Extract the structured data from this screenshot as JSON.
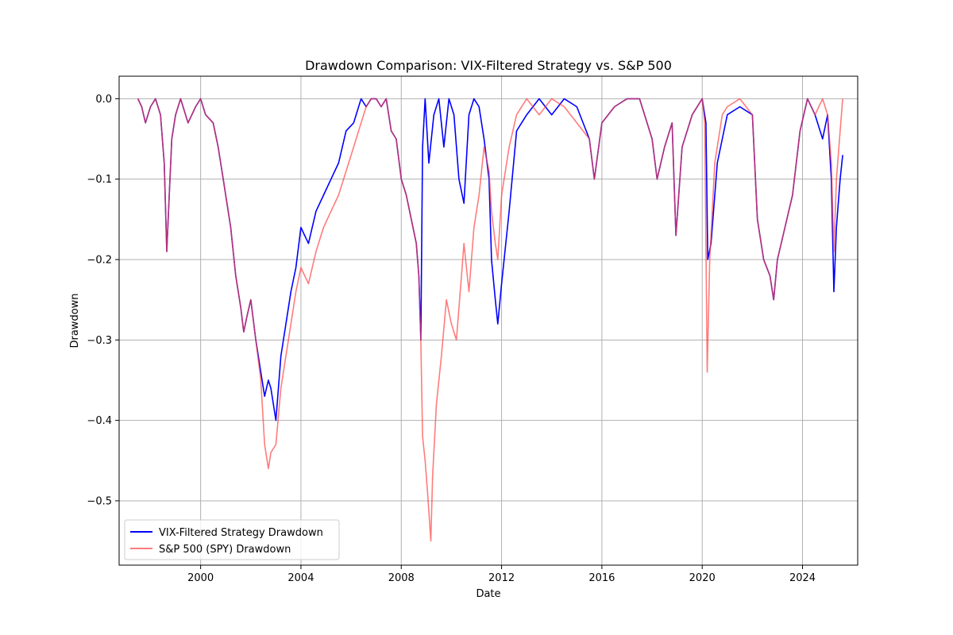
{
  "chart_data": {
    "type": "line",
    "title": "Drawdown Comparison: VIX-Filtered Strategy vs. S&P 500",
    "xlabel": "Date",
    "ylabel": "Drawdown",
    "xlim": [
      1996.75,
      2026.2
    ],
    "ylim": [
      -0.58,
      0.028
    ],
    "grid": true,
    "legend_location": "lower left",
    "x_ticks": [
      2000,
      2004,
      2008,
      2012,
      2016,
      2020,
      2024
    ],
    "x_tick_labels": [
      "2000",
      "2004",
      "2008",
      "2012",
      "2016",
      "2020",
      "2024"
    ],
    "y_ticks": [
      0.0,
      -0.1,
      -0.2,
      -0.3,
      -0.4,
      -0.5
    ],
    "y_tick_labels": [
      "0.0",
      "−0.1",
      "−0.2",
      "−0.3",
      "−0.4",
      "−0.5"
    ],
    "series": [
      {
        "name": "VIX-Filtered Strategy Drawdown",
        "color": "#0000ff",
        "x": [
          1997.5,
          1997.65,
          1997.8,
          1997.9,
          1998.0,
          1998.2,
          1998.4,
          1998.55,
          1998.65,
          1998.72,
          1998.85,
          1999.0,
          1999.2,
          1999.5,
          1999.8,
          2000.0,
          2000.2,
          2000.5,
          2000.7,
          2000.9,
          2001.0,
          2001.2,
          2001.4,
          2001.6,
          2001.72,
          2001.85,
          2002.0,
          2002.2,
          2002.4,
          2002.55,
          2002.7,
          2002.8,
          2003.0,
          2003.2,
          2003.4,
          2003.6,
          2003.8,
          2004.0,
          2004.3,
          2004.6,
          2004.9,
          2005.2,
          2005.5,
          2005.8,
          2006.1,
          2006.4,
          2006.6,
          2006.8,
          2007.0,
          2007.2,
          2007.4,
          2007.6,
          2007.8,
          2008.0,
          2008.2,
          2008.4,
          2008.6,
          2008.7,
          2008.78,
          2008.85,
          2008.95,
          2009.1,
          2009.3,
          2009.5,
          2009.7,
          2009.9,
          2010.1,
          2010.3,
          2010.5,
          2010.7,
          2010.9,
          2011.1,
          2011.3,
          2011.5,
          2011.6,
          2011.75,
          2011.85,
          2012.0,
          2012.3,
          2012.6,
          2013.0,
          2013.5,
          2014.0,
          2014.5,
          2015.0,
          2015.5,
          2015.7,
          2016.0,
          2016.5,
          2017.0,
          2017.5,
          2018.0,
          2018.2,
          2018.5,
          2018.8,
          2018.95,
          2019.2,
          2019.6,
          2020.0,
          2020.15,
          2020.22,
          2020.35,
          2020.6,
          2021.0,
          2021.5,
          2022.0,
          2022.2,
          2022.45,
          2022.7,
          2022.85,
          2023.0,
          2023.3,
          2023.6,
          2023.9,
          2024.2,
          2024.5,
          2024.8,
          2025.0,
          2025.15,
          2025.25,
          2025.35,
          2025.5,
          2025.6
        ],
        "y": [
          0.0,
          -0.01,
          -0.03,
          -0.02,
          -0.01,
          0.0,
          -0.02,
          -0.08,
          -0.19,
          -0.14,
          -0.05,
          -0.02,
          0.0,
          -0.03,
          -0.01,
          0.0,
          -0.02,
          -0.03,
          -0.06,
          -0.1,
          -0.12,
          -0.16,
          -0.22,
          -0.26,
          -0.29,
          -0.27,
          -0.25,
          -0.3,
          -0.34,
          -0.37,
          -0.35,
          -0.36,
          -0.4,
          -0.32,
          -0.28,
          -0.24,
          -0.21,
          -0.16,
          -0.18,
          -0.14,
          -0.12,
          -0.1,
          -0.08,
          -0.04,
          -0.03,
          0.0,
          -0.01,
          0.0,
          0.0,
          -0.01,
          0.0,
          -0.04,
          -0.05,
          -0.1,
          -0.12,
          -0.15,
          -0.18,
          -0.22,
          -0.3,
          -0.06,
          0.0,
          -0.08,
          -0.02,
          0.0,
          -0.06,
          0.0,
          -0.02,
          -0.1,
          -0.13,
          -0.02,
          0.0,
          -0.01,
          -0.05,
          -0.1,
          -0.2,
          -0.25,
          -0.28,
          -0.23,
          -0.14,
          -0.04,
          -0.02,
          0.0,
          -0.02,
          0.0,
          -0.01,
          -0.05,
          -0.1,
          -0.03,
          -0.01,
          0.0,
          0.0,
          -0.05,
          -0.1,
          -0.06,
          -0.03,
          -0.17,
          -0.06,
          -0.02,
          0.0,
          -0.03,
          -0.2,
          -0.18,
          -0.08,
          -0.02,
          -0.01,
          -0.02,
          -0.15,
          -0.2,
          -0.22,
          -0.25,
          -0.2,
          -0.16,
          -0.12,
          -0.04,
          0.0,
          -0.02,
          -0.05,
          -0.02,
          -0.1,
          -0.24,
          -0.16,
          -0.1,
          -0.07
        ]
      },
      {
        "name": "S&P 500 (SPY) Drawdown",
        "color": "#ff4444",
        "x": [
          1997.5,
          1997.65,
          1997.8,
          1997.9,
          1998.0,
          1998.2,
          1998.4,
          1998.55,
          1998.65,
          1998.72,
          1998.85,
          1999.0,
          1999.2,
          1999.5,
          1999.8,
          2000.0,
          2000.2,
          2000.5,
          2000.7,
          2000.9,
          2001.0,
          2001.2,
          2001.4,
          2001.6,
          2001.72,
          2001.85,
          2002.0,
          2002.2,
          2002.4,
          2002.55,
          2002.7,
          2002.8,
          2003.0,
          2003.2,
          2003.4,
          2003.6,
          2003.8,
          2004.0,
          2004.3,
          2004.6,
          2004.9,
          2005.2,
          2005.5,
          2005.8,
          2006.1,
          2006.4,
          2006.6,
          2006.8,
          2007.0,
          2007.2,
          2007.4,
          2007.6,
          2007.8,
          2008.0,
          2008.2,
          2008.4,
          2008.6,
          2008.7,
          2008.78,
          2008.85,
          2008.95,
          2009.05,
          2009.18,
          2009.25,
          2009.4,
          2009.6,
          2009.8,
          2010.0,
          2010.2,
          2010.4,
          2010.5,
          2010.7,
          2010.9,
          2011.1,
          2011.3,
          2011.5,
          2011.6,
          2011.75,
          2011.85,
          2012.0,
          2012.3,
          2012.6,
          2013.0,
          2013.5,
          2014.0,
          2014.5,
          2015.0,
          2015.5,
          2015.7,
          2016.0,
          2016.5,
          2017.0,
          2017.5,
          2018.0,
          2018.2,
          2018.5,
          2018.8,
          2018.95,
          2019.2,
          2019.6,
          2020.0,
          2020.1,
          2020.2,
          2020.3,
          2020.5,
          2020.8,
          2021.0,
          2021.5,
          2022.0,
          2022.2,
          2022.45,
          2022.7,
          2022.85,
          2023.0,
          2023.3,
          2023.6,
          2023.9,
          2024.2,
          2024.5,
          2024.8,
          2025.0,
          2025.15,
          2025.25,
          2025.35,
          2025.5,
          2025.6
        ],
        "y": [
          0.0,
          -0.01,
          -0.03,
          -0.02,
          -0.01,
          0.0,
          -0.02,
          -0.08,
          -0.19,
          -0.14,
          -0.05,
          -0.02,
          0.0,
          -0.03,
          -0.01,
          0.0,
          -0.02,
          -0.03,
          -0.06,
          -0.1,
          -0.12,
          -0.16,
          -0.22,
          -0.26,
          -0.29,
          -0.27,
          -0.25,
          -0.3,
          -0.35,
          -0.43,
          -0.46,
          -0.44,
          -0.43,
          -0.36,
          -0.32,
          -0.28,
          -0.24,
          -0.21,
          -0.23,
          -0.19,
          -0.16,
          -0.14,
          -0.12,
          -0.09,
          -0.06,
          -0.03,
          -0.01,
          0.0,
          0.0,
          -0.01,
          0.0,
          -0.04,
          -0.05,
          -0.1,
          -0.12,
          -0.15,
          -0.18,
          -0.22,
          -0.3,
          -0.42,
          -0.45,
          -0.49,
          -0.55,
          -0.47,
          -0.38,
          -0.32,
          -0.25,
          -0.28,
          -0.3,
          -0.22,
          -0.18,
          -0.24,
          -0.16,
          -0.12,
          -0.06,
          -0.09,
          -0.14,
          -0.18,
          -0.2,
          -0.12,
          -0.06,
          -0.02,
          0.0,
          -0.02,
          0.0,
          -0.01,
          -0.03,
          -0.05,
          -0.1,
          -0.03,
          -0.01,
          0.0,
          0.0,
          -0.05,
          -0.1,
          -0.06,
          -0.03,
          -0.17,
          -0.06,
          -0.02,
          0.0,
          -0.03,
          -0.34,
          -0.2,
          -0.08,
          -0.02,
          -0.01,
          0.0,
          -0.02,
          -0.15,
          -0.2,
          -0.22,
          -0.25,
          -0.2,
          -0.16,
          -0.12,
          -0.04,
          0.0,
          -0.02,
          0.0,
          -0.02,
          -0.08,
          -0.19,
          -0.1,
          -0.04,
          0.0
        ]
      }
    ]
  }
}
